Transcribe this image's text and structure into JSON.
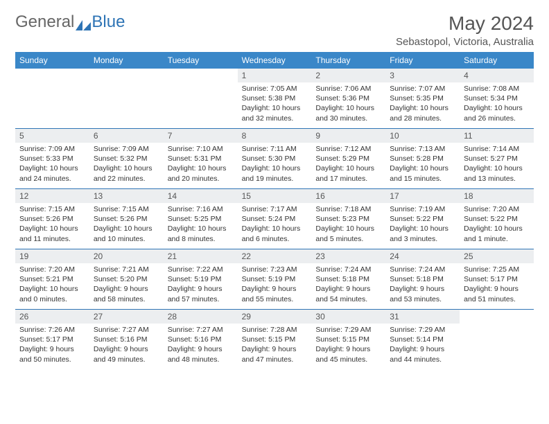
{
  "logo": {
    "general": "General",
    "blue": "Blue"
  },
  "title": "May 2024",
  "location": "Sebastopol, Victoria, Australia",
  "colors": {
    "header_bg": "#3a87c8",
    "header_text": "#ffffff",
    "daynum_bg": "#eceef0",
    "week_border": "#2e74b5",
    "logo_blue": "#2e74b5",
    "text": "#333333"
  },
  "weekdays": [
    "Sunday",
    "Monday",
    "Tuesday",
    "Wednesday",
    "Thursday",
    "Friday",
    "Saturday"
  ],
  "weeks": [
    [
      {
        "n": "",
        "sr": "",
        "ss": "",
        "dl1": "",
        "dl2": ""
      },
      {
        "n": "",
        "sr": "",
        "ss": "",
        "dl1": "",
        "dl2": ""
      },
      {
        "n": "",
        "sr": "",
        "ss": "",
        "dl1": "",
        "dl2": ""
      },
      {
        "n": "1",
        "sr": "Sunrise: 7:05 AM",
        "ss": "Sunset: 5:38 PM",
        "dl1": "Daylight: 10 hours",
        "dl2": "and 32 minutes."
      },
      {
        "n": "2",
        "sr": "Sunrise: 7:06 AM",
        "ss": "Sunset: 5:36 PM",
        "dl1": "Daylight: 10 hours",
        "dl2": "and 30 minutes."
      },
      {
        "n": "3",
        "sr": "Sunrise: 7:07 AM",
        "ss": "Sunset: 5:35 PM",
        "dl1": "Daylight: 10 hours",
        "dl2": "and 28 minutes."
      },
      {
        "n": "4",
        "sr": "Sunrise: 7:08 AM",
        "ss": "Sunset: 5:34 PM",
        "dl1": "Daylight: 10 hours",
        "dl2": "and 26 minutes."
      }
    ],
    [
      {
        "n": "5",
        "sr": "Sunrise: 7:09 AM",
        "ss": "Sunset: 5:33 PM",
        "dl1": "Daylight: 10 hours",
        "dl2": "and 24 minutes."
      },
      {
        "n": "6",
        "sr": "Sunrise: 7:09 AM",
        "ss": "Sunset: 5:32 PM",
        "dl1": "Daylight: 10 hours",
        "dl2": "and 22 minutes."
      },
      {
        "n": "7",
        "sr": "Sunrise: 7:10 AM",
        "ss": "Sunset: 5:31 PM",
        "dl1": "Daylight: 10 hours",
        "dl2": "and 20 minutes."
      },
      {
        "n": "8",
        "sr": "Sunrise: 7:11 AM",
        "ss": "Sunset: 5:30 PM",
        "dl1": "Daylight: 10 hours",
        "dl2": "and 19 minutes."
      },
      {
        "n": "9",
        "sr": "Sunrise: 7:12 AM",
        "ss": "Sunset: 5:29 PM",
        "dl1": "Daylight: 10 hours",
        "dl2": "and 17 minutes."
      },
      {
        "n": "10",
        "sr": "Sunrise: 7:13 AM",
        "ss": "Sunset: 5:28 PM",
        "dl1": "Daylight: 10 hours",
        "dl2": "and 15 minutes."
      },
      {
        "n": "11",
        "sr": "Sunrise: 7:14 AM",
        "ss": "Sunset: 5:27 PM",
        "dl1": "Daylight: 10 hours",
        "dl2": "and 13 minutes."
      }
    ],
    [
      {
        "n": "12",
        "sr": "Sunrise: 7:15 AM",
        "ss": "Sunset: 5:26 PM",
        "dl1": "Daylight: 10 hours",
        "dl2": "and 11 minutes."
      },
      {
        "n": "13",
        "sr": "Sunrise: 7:15 AM",
        "ss": "Sunset: 5:26 PM",
        "dl1": "Daylight: 10 hours",
        "dl2": "and 10 minutes."
      },
      {
        "n": "14",
        "sr": "Sunrise: 7:16 AM",
        "ss": "Sunset: 5:25 PM",
        "dl1": "Daylight: 10 hours",
        "dl2": "and 8 minutes."
      },
      {
        "n": "15",
        "sr": "Sunrise: 7:17 AM",
        "ss": "Sunset: 5:24 PM",
        "dl1": "Daylight: 10 hours",
        "dl2": "and 6 minutes."
      },
      {
        "n": "16",
        "sr": "Sunrise: 7:18 AM",
        "ss": "Sunset: 5:23 PM",
        "dl1": "Daylight: 10 hours",
        "dl2": "and 5 minutes."
      },
      {
        "n": "17",
        "sr": "Sunrise: 7:19 AM",
        "ss": "Sunset: 5:22 PM",
        "dl1": "Daylight: 10 hours",
        "dl2": "and 3 minutes."
      },
      {
        "n": "18",
        "sr": "Sunrise: 7:20 AM",
        "ss": "Sunset: 5:22 PM",
        "dl1": "Daylight: 10 hours",
        "dl2": "and 1 minute."
      }
    ],
    [
      {
        "n": "19",
        "sr": "Sunrise: 7:20 AM",
        "ss": "Sunset: 5:21 PM",
        "dl1": "Daylight: 10 hours",
        "dl2": "and 0 minutes."
      },
      {
        "n": "20",
        "sr": "Sunrise: 7:21 AM",
        "ss": "Sunset: 5:20 PM",
        "dl1": "Daylight: 9 hours",
        "dl2": "and 58 minutes."
      },
      {
        "n": "21",
        "sr": "Sunrise: 7:22 AM",
        "ss": "Sunset: 5:19 PM",
        "dl1": "Daylight: 9 hours",
        "dl2": "and 57 minutes."
      },
      {
        "n": "22",
        "sr": "Sunrise: 7:23 AM",
        "ss": "Sunset: 5:19 PM",
        "dl1": "Daylight: 9 hours",
        "dl2": "and 55 minutes."
      },
      {
        "n": "23",
        "sr": "Sunrise: 7:24 AM",
        "ss": "Sunset: 5:18 PM",
        "dl1": "Daylight: 9 hours",
        "dl2": "and 54 minutes."
      },
      {
        "n": "24",
        "sr": "Sunrise: 7:24 AM",
        "ss": "Sunset: 5:18 PM",
        "dl1": "Daylight: 9 hours",
        "dl2": "and 53 minutes."
      },
      {
        "n": "25",
        "sr": "Sunrise: 7:25 AM",
        "ss": "Sunset: 5:17 PM",
        "dl1": "Daylight: 9 hours",
        "dl2": "and 51 minutes."
      }
    ],
    [
      {
        "n": "26",
        "sr": "Sunrise: 7:26 AM",
        "ss": "Sunset: 5:17 PM",
        "dl1": "Daylight: 9 hours",
        "dl2": "and 50 minutes."
      },
      {
        "n": "27",
        "sr": "Sunrise: 7:27 AM",
        "ss": "Sunset: 5:16 PM",
        "dl1": "Daylight: 9 hours",
        "dl2": "and 49 minutes."
      },
      {
        "n": "28",
        "sr": "Sunrise: 7:27 AM",
        "ss": "Sunset: 5:16 PM",
        "dl1": "Daylight: 9 hours",
        "dl2": "and 48 minutes."
      },
      {
        "n": "29",
        "sr": "Sunrise: 7:28 AM",
        "ss": "Sunset: 5:15 PM",
        "dl1": "Daylight: 9 hours",
        "dl2": "and 47 minutes."
      },
      {
        "n": "30",
        "sr": "Sunrise: 7:29 AM",
        "ss": "Sunset: 5:15 PM",
        "dl1": "Daylight: 9 hours",
        "dl2": "and 45 minutes."
      },
      {
        "n": "31",
        "sr": "Sunrise: 7:29 AM",
        "ss": "Sunset: 5:14 PM",
        "dl1": "Daylight: 9 hours",
        "dl2": "and 44 minutes."
      },
      {
        "n": "",
        "sr": "",
        "ss": "",
        "dl1": "",
        "dl2": ""
      }
    ]
  ]
}
